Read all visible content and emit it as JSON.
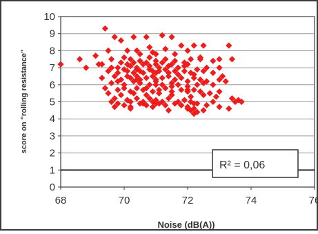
{
  "chart_data": {
    "type": "scatter",
    "xlabel": "Noise (dB(A))",
    "ylabel": "score on \"rolling resistance\"",
    "xlim": [
      68,
      76
    ],
    "ylim": [
      0,
      10
    ],
    "x_ticks": [
      "68",
      "70",
      "72",
      "74",
      "76"
    ],
    "y_ticks": [
      "0",
      "1",
      "2",
      "3",
      "4",
      "5",
      "6",
      "7",
      "8",
      "9",
      "10"
    ],
    "grid": "horizontal",
    "annotation": "R² = 0,06",
    "colors": {
      "marker": "#ee1c1c",
      "frame": "#3a3a3a",
      "grid": "#9a9a9a",
      "text": "#333333"
    },
    "series": [
      {
        "x": [
          68.0,
          68.6,
          69.4,
          69.5,
          69.7,
          69.8,
          69.9,
          70.1,
          70.3,
          70.4,
          70.5,
          70.7,
          70.8,
          70.9,
          71.0,
          71.2,
          71.3,
          71.5,
          71.6,
          71.8,
          72.0,
          72.2,
          72.4,
          72.5,
          73.3,
          68.8,
          69.1,
          69.3,
          69.6,
          70.0,
          70.2,
          70.5,
          70.8,
          71.0,
          71.3,
          71.6,
          71.9,
          72.1,
          72.4,
          72.8,
          73.0,
          73.4,
          69.2,
          69.6,
          69.9,
          70.1,
          70.2,
          70.3,
          70.4,
          70.6,
          70.7,
          70.8,
          71.0,
          71.1,
          71.2,
          71.4,
          71.5,
          71.7,
          71.9,
          72.0,
          72.3,
          72.6,
          73.0,
          69.5,
          69.8,
          70.0,
          70.1,
          70.3,
          70.4,
          70.5,
          70.6,
          70.8,
          70.9,
          71.0,
          71.1,
          71.3,
          71.4,
          71.6,
          71.7,
          71.9,
          72.1,
          72.2,
          72.5,
          72.8,
          73.1,
          69.3,
          69.7,
          69.9,
          70.1,
          70.2,
          70.4,
          70.5,
          70.7,
          70.9,
          71.0,
          71.2,
          71.4,
          71.6,
          71.8,
          72.0,
          72.2,
          72.4,
          72.6,
          73.0,
          73.2,
          69.6,
          70.0,
          70.3,
          70.5,
          70.8,
          71.0,
          71.2,
          71.5,
          71.7,
          72.0,
          72.3,
          72.5,
          72.8,
          69.4,
          69.8,
          70.0,
          70.2,
          70.4,
          70.6,
          70.7,
          70.9,
          71.1,
          71.3,
          71.5,
          71.8,
          72.0,
          72.2,
          72.4,
          72.7,
          73.0,
          69.5,
          69.9,
          70.3,
          70.7,
          71.1,
          71.5,
          72.1,
          72.5,
          72.9,
          73.4,
          69.7,
          70.1,
          70.4,
          70.6,
          70.8,
          71.0,
          71.2,
          71.4,
          71.7,
          71.9,
          72.1,
          72.3,
          69.8,
          70.0,
          70.2,
          70.5,
          70.7,
          70.9,
          71.1,
          71.3,
          71.6,
          71.8,
          72.0,
          72.2,
          72.6,
          69.7,
          70.2,
          70.9,
          71.4,
          72.0,
          72.5,
          73.0,
          69.6,
          70.1,
          70.6,
          71.2,
          71.8,
          72.2,
          72.8,
          73.5,
          73.6,
          73.7,
          69.8,
          70.4,
          71.0,
          71.5,
          72.0,
          72.3,
          73.3,
          70.2,
          71.0,
          72.1,
          72.2
        ],
        "y": [
          7.2,
          7.5,
          9.3,
          8.0,
          8.8,
          7.0,
          8.6,
          8.0,
          8.8,
          8.0,
          7.8,
          8.8,
          8.2,
          7.9,
          7.8,
          8.9,
          8.1,
          8.8,
          7.8,
          8.3,
          8.0,
          8.3,
          7.5,
          8.3,
          8.3,
          7.0,
          7.7,
          7.2,
          7.5,
          7.6,
          7.5,
          7.4,
          7.6,
          7.4,
          7.5,
          7.4,
          7.3,
          7.5,
          7.6,
          7.4,
          7.5,
          7.5,
          7.2,
          7.0,
          7.3,
          7.2,
          7.1,
          7.3,
          7.0,
          7.2,
          7.3,
          7.1,
          7.2,
          7.0,
          7.3,
          7.1,
          7.2,
          7.0,
          7.1,
          7.2,
          6.9,
          7.0,
          7.0,
          6.8,
          6.7,
          6.9,
          6.8,
          6.7,
          6.9,
          6.8,
          6.7,
          6.9,
          6.8,
          6.7,
          6.8,
          6.9,
          6.7,
          6.8,
          6.6,
          6.8,
          6.7,
          6.6,
          6.8,
          6.7,
          6.5,
          6.4,
          6.5,
          6.3,
          6.5,
          6.4,
          6.5,
          6.3,
          6.4,
          6.5,
          6.3,
          6.4,
          6.5,
          6.3,
          6.4,
          6.2,
          6.4,
          6.3,
          6.2,
          6.3,
          6.2,
          6.1,
          6.0,
          6.2,
          6.1,
          6.0,
          6.2,
          6.0,
          6.1,
          6.0,
          5.9,
          6.0,
          6.1,
          6.0,
          5.8,
          5.7,
          5.8,
          5.6,
          5.8,
          5.7,
          5.8,
          5.6,
          5.7,
          5.8,
          5.6,
          5.7,
          5.6,
          5.7,
          5.6,
          5.5,
          5.6,
          5.5,
          5.4,
          5.5,
          5.4,
          5.5,
          5.4,
          5.3,
          5.4,
          5.3,
          5.2,
          5.2,
          5.1,
          5.2,
          5.0,
          5.2,
          5.1,
          5.0,
          5.2,
          5.0,
          5.1,
          5.0,
          4.9,
          4.9,
          4.8,
          5.0,
          4.9,
          4.8,
          5.0,
          4.9,
          4.8,
          4.9,
          4.8,
          4.7,
          4.6,
          4.8,
          4.7,
          4.6,
          4.7,
          4.5,
          4.6,
          4.5,
          4.7,
          5.0,
          5.1,
          4.9,
          5.0,
          4.8,
          4.9,
          5.0,
          5.0,
          5.1,
          5.0,
          6.2,
          6.3,
          6.0,
          5.9,
          5.7,
          4.4,
          4.6,
          4.7,
          4.9,
          4.5,
          4.3
        ]
      }
    ]
  }
}
